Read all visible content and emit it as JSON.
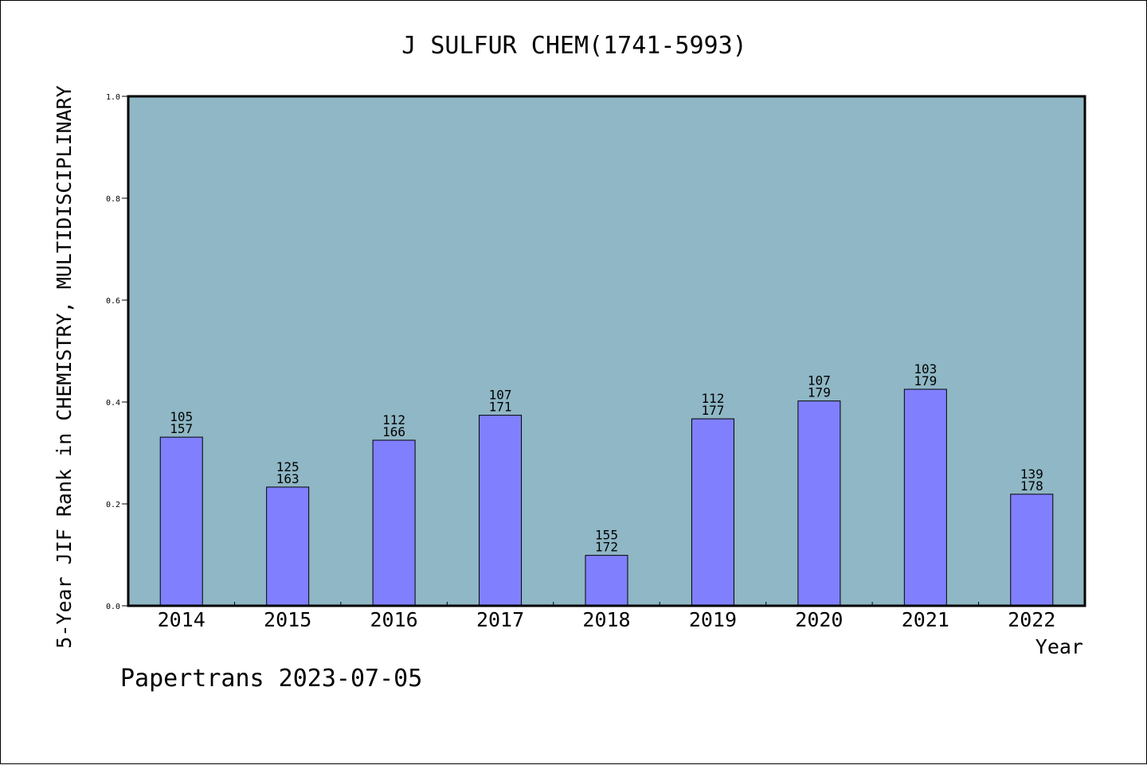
{
  "footer": {
    "credit": "Papertrans 2023-07-05"
  },
  "colors": {
    "plot_bg": "#8fb7c5",
    "bar": "#8080ff",
    "bar_edge": "#000000"
  },
  "chart_data": {
    "type": "bar",
    "title": "J SULFUR CHEM(1741-5993)",
    "xlabel": "Year",
    "ylabel": "5-Year JIF Rank in CHEMISTRY, MULTIDISCIPLINARY",
    "ylim": [
      0.0,
      1.0
    ],
    "yticks": [
      "0.0",
      "0.2",
      "0.4",
      "0.6",
      "0.8",
      "1.0"
    ],
    "grid": false,
    "categories": [
      "2014",
      "2015",
      "2016",
      "2017",
      "2018",
      "2019",
      "2020",
      "2021",
      "2022"
    ],
    "values": [
      0.331,
      0.233,
      0.325,
      0.374,
      0.099,
      0.367,
      0.402,
      0.425,
      0.219
    ],
    "rank": [
      "105",
      "125",
      "112",
      "107",
      "155",
      "112",
      "107",
      "103",
      "139"
    ],
    "total": [
      "157",
      "163",
      "166",
      "171",
      "172",
      "177",
      "179",
      "179",
      "178"
    ]
  }
}
